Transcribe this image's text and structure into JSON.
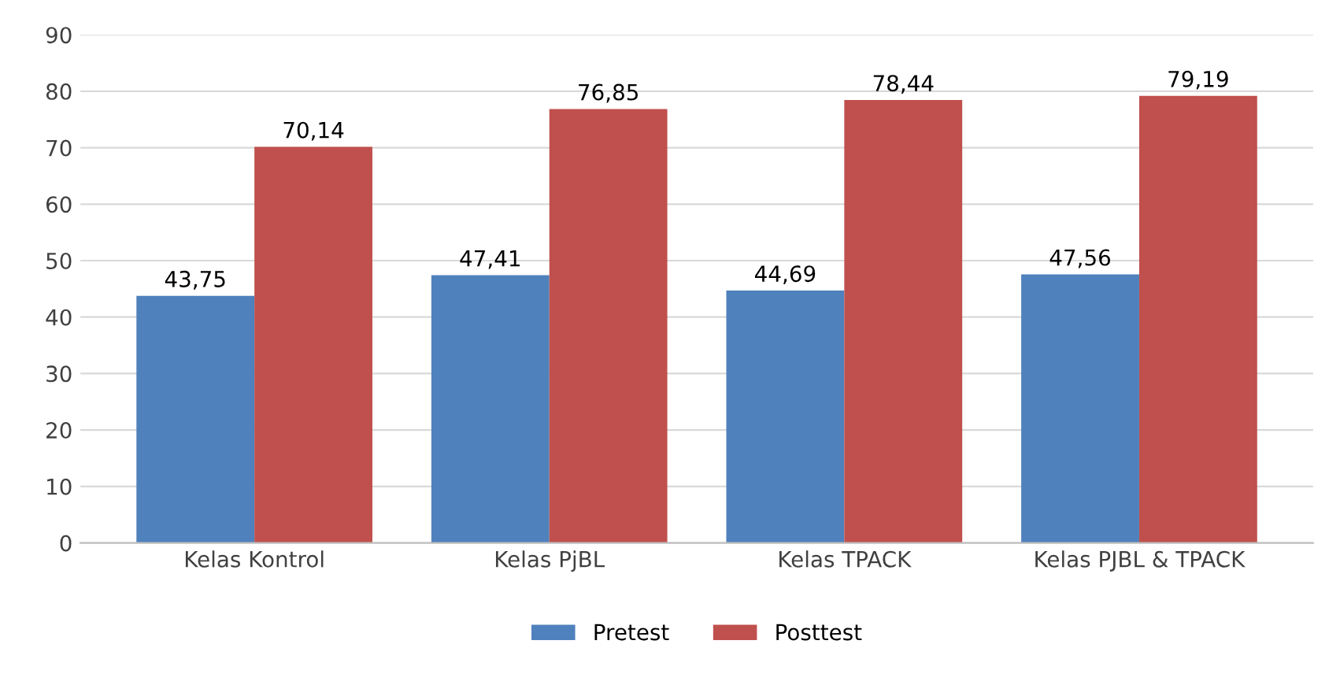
{
  "chart_data": {
    "type": "bar",
    "categories": [
      "Kelas Kontrol",
      "Kelas PjBL",
      "Kelas TPACK",
      "Kelas PJBL & TPACK"
    ],
    "series": [
      {
        "name": "Pretest",
        "color": "#4f81bd",
        "values": [
          43.75,
          47.41,
          44.69,
          47.56
        ],
        "value_labels": [
          "43,75",
          "47,41",
          "44,69",
          "47,56"
        ]
      },
      {
        "name": "Posttest",
        "color": "#c0504d",
        "values": [
          70.14,
          76.85,
          78.44,
          79.19
        ],
        "value_labels": [
          "70,14",
          "76,85",
          "78,44",
          "79,19"
        ]
      }
    ],
    "ylim": [
      0,
      90
    ],
    "yticks": [
      0,
      10,
      20,
      30,
      40,
      50,
      60,
      70,
      80,
      90
    ],
    "grid": "y",
    "legend": "bottom"
  }
}
